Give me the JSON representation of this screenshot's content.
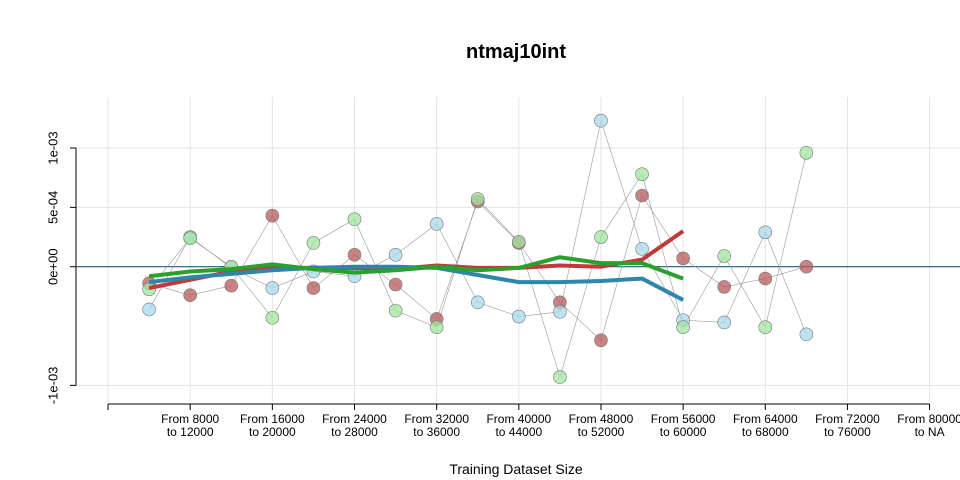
{
  "chart_data": {
    "type": "line",
    "title": "ntmaj10int",
    "x_label": "Training Dataset Size",
    "xlim": [
      -0.39,
      10.37
    ],
    "xticks": [
      {
        "value": 0,
        "label": null
      },
      {
        "value": 1,
        "label": "From 8000\nto 12000"
      },
      {
        "value": 2,
        "label": "From 16000\nto 20000"
      },
      {
        "value": 3,
        "label": "From 24000\nto 28000"
      },
      {
        "value": 4,
        "label": "From 32000\nto 36000"
      },
      {
        "value": 5,
        "label": "From 40000\nto 44000"
      },
      {
        "value": 6,
        "label": "From 48000\nto 52000"
      },
      {
        "value": 7,
        "label": "From 56000\nto 60000"
      },
      {
        "value": 8,
        "label": "From 64000\nto 68000"
      },
      {
        "value": 9,
        "label": "From 72000\nto 76000"
      },
      {
        "value": 10,
        "label": "From 80000\nto NA"
      }
    ],
    "ylim": [
      -0.00114,
      0.00143
    ],
    "yticks": [
      {
        "value": -0.001,
        "label": "-1e-03"
      },
      {
        "value": 0,
        "label": "0e+00"
      },
      {
        "value": 0.0005,
        "label": "5e-04"
      },
      {
        "value": 0.001,
        "label": "1e-03"
      }
    ],
    "grid": true,
    "reference_line": 0,
    "series": [
      {
        "color": "#b5595a",
        "x": [
          0.5,
          1,
          1.5,
          2,
          2.5,
          3,
          3.5,
          4,
          4.5,
          5,
          5.5,
          6,
          6.5,
          7,
          7.5,
          8,
          8.5
        ],
        "values": [
          -0.00014,
          -0.00024,
          -0.00016,
          0.00043,
          -0.00018,
          0.0001,
          -0.00015,
          -0.00044,
          0.00055,
          0.0002,
          -0.0003,
          -0.00062,
          0.0006,
          7e-05,
          -0.00017,
          -0.0001,
          0
        ]
      },
      {
        "color": "#a8d8ea",
        "x": [
          0.5,
          1,
          1.5,
          2,
          2.5,
          3,
          3.5,
          4,
          4.5,
          5,
          5.5,
          6,
          6.5,
          7,
          7.5,
          8,
          8.5
        ],
        "values": [
          -0.00036,
          0.00025,
          -1e-05,
          -0.00018,
          -4e-05,
          -8e-05,
          0.0001,
          0.00036,
          -0.0003,
          -0.00042,
          -0.00038,
          0.00123,
          0.00015,
          -0.00045,
          -0.00047,
          0.00029,
          -0.00057
        ]
      },
      {
        "color": "#9fe59f",
        "x": [
          0.5,
          1,
          1.5,
          2,
          2.5,
          3,
          3.5,
          4,
          4.5,
          5,
          5.5,
          6,
          6.5,
          7,
          7.5,
          8,
          8.5
        ],
        "values": [
          -0.00019,
          0.00024,
          0,
          -0.00043,
          0.0002,
          0.0004,
          -0.00037,
          -0.00051,
          0.00057,
          0.00021,
          -0.00093,
          0.00025,
          0.00078,
          -0.00051,
          9e-05,
          -0.00051,
          0.00096
        ]
      }
    ],
    "trend_series": [
      {
        "color": "#c0393b",
        "x": [
          0.5,
          1,
          1.5,
          2,
          2.5,
          3,
          3.5,
          4,
          4.5,
          5,
          5.5,
          6,
          6.5,
          7
        ],
        "values": [
          -0.00018,
          -0.00011,
          -4e-05,
          -1e-05,
          -1e-05,
          -1e-05,
          -2e-05,
          1e-05,
          -1e-05,
          -1e-05,
          1e-05,
          0,
          6e-05,
          0.0003
        ]
      },
      {
        "color": "#2e86ab",
        "x": [
          0.5,
          1,
          1.5,
          2,
          2.5,
          3,
          3.5,
          4,
          4.5,
          5,
          5.5,
          6,
          6.5,
          7
        ],
        "values": [
          -0.00013,
          -9e-05,
          -6e-05,
          -3e-05,
          -1e-05,
          0,
          0,
          -1e-05,
          -7e-05,
          -0.00013,
          -0.00013,
          -0.00012,
          -0.0001,
          -0.00028
        ]
      },
      {
        "color": "#2ca02c",
        "x": [
          0.5,
          1,
          1.5,
          2,
          2.5,
          3,
          3.5,
          4,
          4.5,
          5,
          5.5,
          6,
          6.5,
          7
        ],
        "values": [
          -8e-05,
          -4e-05,
          -2e-05,
          2e-05,
          -2e-05,
          -5e-05,
          -3e-05,
          0,
          -3e-05,
          -1e-05,
          8e-05,
          3e-05,
          3e-05,
          -0.0001
        ]
      }
    ]
  }
}
